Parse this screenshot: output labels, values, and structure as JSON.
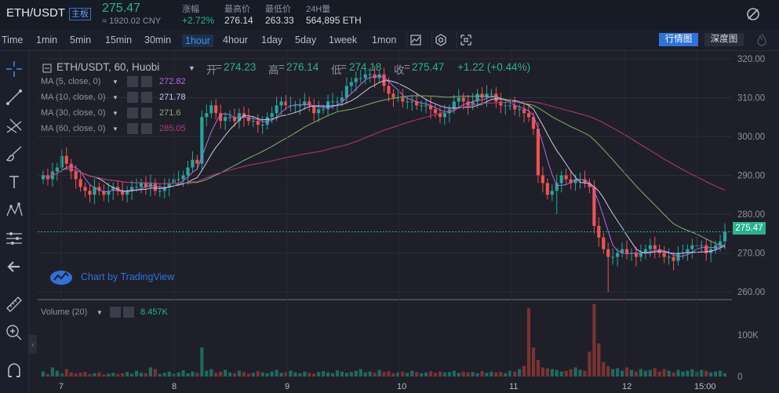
{
  "header": {
    "pair": "ETH/USDT",
    "board": "主板",
    "last_price": "275.47",
    "cny_price": "≈ 1920.02 CNY",
    "change_label": "涨幅",
    "change_value": "+2.72%",
    "high_label": "最高价",
    "high_value": "276.14",
    "low_label": "最低价",
    "low_value": "263.33",
    "vol_label": "24H量",
    "vol_value": "564,895 ETH"
  },
  "toolbar": {
    "timeframes": [
      "Time",
      "1min",
      "5min",
      "15min",
      "30min",
      "1hour",
      "4hour",
      "1day",
      "5day",
      "1week",
      "1mon"
    ],
    "active": "1hour",
    "market_btn": "行情图",
    "depth_btn": "深度图"
  },
  "chart_data": {
    "type": "candlestick",
    "symbol_label": "ETH/USDT, 60, Huobi",
    "ohlc": {
      "open_label": "开",
      "open": "274.23",
      "high_label": "高",
      "high": "276.14",
      "low_label": "低",
      "low": "274.18",
      "close_label": "收",
      "close": "275.47",
      "change": "+1.22 (+0.44%)"
    },
    "ma": [
      {
        "label": "MA (5, close, 0)",
        "value": "272.82",
        "color": "#b26ae0"
      },
      {
        "label": "MA (10, close, 0)",
        "value": "271.78",
        "color": "#c7c9e8"
      },
      {
        "label": "MA (30, close, 0)",
        "value": "271.6",
        "color": "#7fb26a"
      },
      {
        "label": "MA (60, close, 0)",
        "value": "285.05",
        "color": "#b23a72"
      }
    ],
    "yaxis_ticks": [
      "320.00",
      "310.00",
      "300.00",
      "290.00",
      "280.00",
      "270.00",
      "260.00"
    ],
    "ylim": [
      258,
      322
    ],
    "xaxis_ticks": [
      "7",
      "8",
      "9",
      "10",
      "11",
      "12",
      "15:00"
    ],
    "current_price": "275.47",
    "up_color": "#26a69a",
    "down_color": "#ef5350",
    "closes": [
      290,
      289,
      291,
      292,
      295,
      293,
      291,
      289,
      287,
      286,
      285,
      287,
      286,
      285,
      286,
      287,
      286,
      285,
      286,
      287,
      287,
      288,
      287,
      288,
      286,
      286,
      287,
      288,
      289,
      289,
      290,
      292,
      294,
      293,
      305,
      306,
      308,
      306,
      304,
      305,
      305,
      304,
      306,
      305,
      304,
      304,
      303,
      303,
      305,
      306,
      308,
      309,
      308,
      308,
      308,
      308,
      309,
      308,
      306,
      307,
      307,
      309,
      309,
      309,
      310,
      313,
      314,
      315,
      315,
      316,
      316,
      315,
      316,
      313,
      311,
      310,
      310,
      309,
      309,
      309,
      308,
      308,
      308,
      307,
      306,
      305,
      306,
      307,
      309,
      310,
      309,
      308,
      309,
      311,
      310,
      311,
      311,
      309,
      308,
      308,
      308,
      307,
      307,
      306,
      305,
      302,
      290,
      288,
      285,
      286,
      288,
      290,
      289,
      288,
      289,
      289,
      288,
      287,
      277,
      274,
      271,
      269,
      269,
      270,
      271,
      270,
      270,
      269,
      270,
      271,
      272,
      271,
      270,
      269,
      269,
      268,
      270,
      270,
      271,
      272,
      272,
      272,
      270,
      271,
      272,
      273,
      275.47
    ],
    "volume": {
      "label": "Volume (20)",
      "value": "8.457K",
      "ticks": [
        "100K",
        "0"
      ],
      "ylim": [
        0,
        180
      ],
      "bars": [
        12,
        6,
        22,
        14,
        8,
        18,
        10,
        7,
        9,
        11,
        6,
        8,
        10,
        5,
        7,
        9,
        6,
        8,
        11,
        7,
        14,
        9,
        8,
        22,
        18,
        6,
        9,
        12,
        7,
        10,
        15,
        8,
        12,
        9,
        70,
        14,
        18,
        9,
        12,
        16,
        10,
        8,
        14,
        11,
        7,
        9,
        13,
        10,
        8,
        12,
        16,
        9,
        11,
        14,
        10,
        8,
        12,
        9,
        7,
        11,
        13,
        10,
        8,
        15,
        12,
        9,
        11,
        14,
        18,
        10,
        12,
        9,
        16,
        11,
        13,
        8,
        10,
        12,
        9,
        14,
        11,
        8,
        10,
        13,
        9,
        12,
        10,
        11,
        14,
        9,
        12,
        10,
        11,
        8,
        13,
        9,
        12,
        10,
        11,
        8,
        14,
        12,
        18,
        26,
        165,
        70,
        40,
        22,
        20,
        18,
        16,
        12,
        14,
        18,
        22,
        16,
        14,
        60,
        175,
        80,
        35,
        25,
        18,
        20,
        14,
        22,
        16,
        12,
        18,
        14,
        16,
        20,
        12,
        18,
        14,
        10,
        16,
        12,
        14,
        18,
        12,
        16,
        14,
        10,
        12,
        14,
        8
      ]
    }
  },
  "watermark": "Chart by TradingView"
}
